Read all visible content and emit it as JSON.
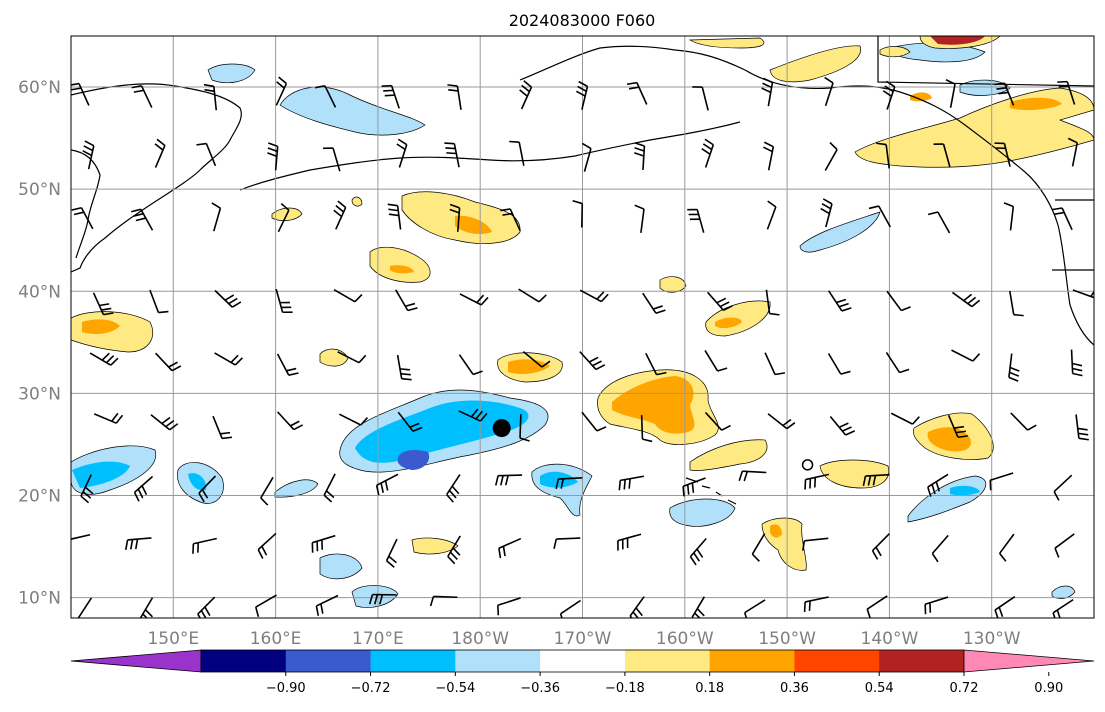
{
  "title": "2024083000 F060",
  "map": {
    "lat_range": [
      8,
      65
    ],
    "lon_range_east": [
      140,
      240
    ],
    "lat_ticks": [
      {
        "value": 10,
        "label": "10°N"
      },
      {
        "value": 20,
        "label": "20°N"
      },
      {
        "value": 30,
        "label": "30°N"
      },
      {
        "value": 40,
        "label": "40°N"
      },
      {
        "value": 50,
        "label": "50°N"
      },
      {
        "value": 60,
        "label": "60°N"
      }
    ],
    "lon_ticks": [
      {
        "value": 150,
        "label": "150°E"
      },
      {
        "value": 160,
        "label": "160°E"
      },
      {
        "value": 170,
        "label": "170°E"
      },
      {
        "value": 180,
        "label": "180°W"
      },
      {
        "value": 190,
        "label": "170°W"
      },
      {
        "value": 200,
        "label": "160°W"
      },
      {
        "value": 210,
        "label": "150°W"
      },
      {
        "value": 220,
        "label": "140°W"
      },
      {
        "value": 230,
        "label": "130°W"
      }
    ],
    "storm_center": {
      "lat": 26.6,
      "lon": 182.1
    },
    "small_circle": {
      "lat": 23.0,
      "lon": 212.0
    }
  },
  "colorbar": {
    "levels": [
      "−0.90",
      "−0.72",
      "−0.54",
      "−0.36",
      "−0.18",
      "0.18",
      "0.36",
      "0.54",
      "0.72",
      "0.90"
    ],
    "colors": [
      "#9933cc",
      "#000080",
      "#3a5bcf",
      "#00bfff",
      "#b0e0fa",
      "#ffffff",
      "#ffe983",
      "#ffa500",
      "#ff4500",
      "#b22222",
      "#ff88b4"
    ]
  }
}
